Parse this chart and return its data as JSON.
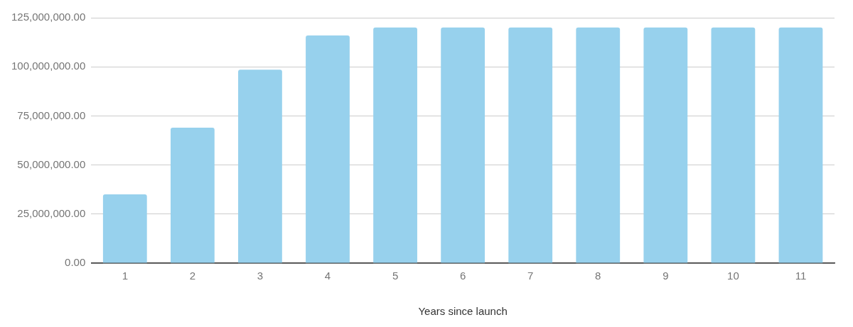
{
  "chart_data": {
    "type": "bar",
    "xlabel": "Years since launch",
    "categories": [
      "1",
      "2",
      "3",
      "4",
      "5",
      "6",
      "7",
      "8",
      "9",
      "10",
      "11"
    ],
    "values": [
      35000000,
      69000000,
      98500000,
      116000000,
      120000000,
      120000000,
      120000000,
      120000000,
      120000000,
      120000000,
      120000000
    ],
    "color": "#97d1ed",
    "ylim": [
      0,
      125000000
    ],
    "yticks": [
      {
        "value": 0,
        "label": "0.00"
      },
      {
        "value": 25000000,
        "label": "25,000,000.00"
      },
      {
        "value": 50000000,
        "label": "50,000,000.00"
      },
      {
        "value": 75000000,
        "label": "75,000,000.00"
      },
      {
        "value": 100000000,
        "label": "100,000,000.00"
      },
      {
        "value": 125000000,
        "label": "125,000,000.00"
      }
    ],
    "grid": "y",
    "legend": false
  }
}
